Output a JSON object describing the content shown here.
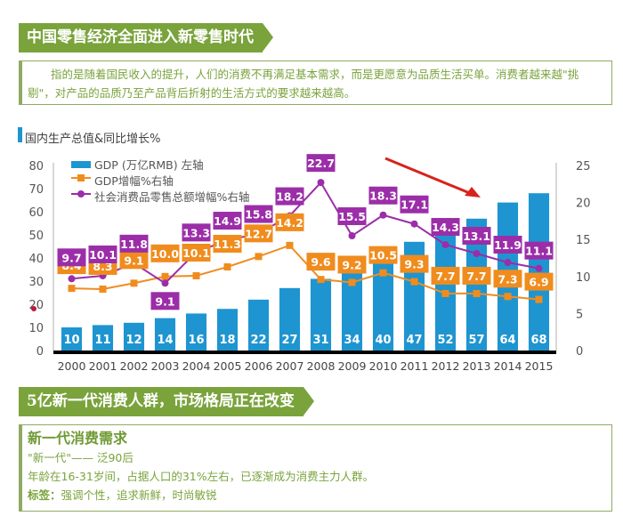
{
  "section1": {
    "banner_title": "中国零售经济全面进入新零售时代",
    "intro_text": "指的是随着国民收入的提升，人们的消费不再满足基本需求，而是更愿意为品质生活买单。消费者越来越\"挑剔\"，对产品的品质乃至产品背后折射的生活方式的要求越来越高。"
  },
  "chart_heading": "国内生产总值&同比增长%",
  "chart_data": {
    "type": "bar+line",
    "title": "国内生产总值&同比增长%",
    "categories": [
      "2000",
      "2001",
      "2002",
      "2003",
      "2004",
      "2005",
      "2006",
      "2007",
      "2008",
      "2009",
      "2010",
      "2011",
      "2012",
      "2013",
      "2014",
      "2015"
    ],
    "series": [
      {
        "name": "GDP (万亿RMB) 左轴",
        "type": "bar",
        "axis": "left",
        "color": "#1e95d0",
        "values": [
          10,
          11,
          12,
          14,
          16,
          18,
          22,
          27,
          31,
          34,
          40,
          47,
          52,
          57,
          64,
          68
        ]
      },
      {
        "name": "GDP增幅%右轴",
        "type": "line",
        "axis": "right",
        "color": "#f08c1e",
        "values": [
          8.4,
          8.3,
          9.1,
          10.0,
          10.1,
          11.3,
          12.7,
          14.2,
          9.6,
          9.2,
          10.5,
          9.3,
          7.7,
          7.7,
          7.3,
          6.9
        ]
      },
      {
        "name": "社会消费品零售总额增幅%右轴",
        "type": "line",
        "axis": "right",
        "color": "#9b2ea8",
        "values": [
          9.7,
          10.1,
          11.8,
          9.1,
          13.3,
          14.9,
          15.8,
          18.2,
          22.7,
          15.5,
          18.3,
          17.1,
          14.3,
          13.1,
          11.9,
          11.1
        ]
      }
    ],
    "left_axis": {
      "ylim": [
        0,
        80
      ],
      "ticks": [
        0,
        10,
        20,
        30,
        40,
        50,
        60,
        70,
        80
      ]
    },
    "right_axis": {
      "ylim": [
        0,
        25
      ],
      "ticks": [
        0,
        5,
        10,
        15,
        20,
        25
      ]
    },
    "legend_position": "top-left",
    "annotation": "red arrow pointing down-right (declining trend)",
    "grid": false
  },
  "section2": {
    "banner_title": "5亿新一代消费人群，市场格局正在改变",
    "box_title": "新一代消费需求",
    "line1": "\"新一代\"—— 泛90后",
    "line2": "年龄在16-31岁间，占据人口的31%左右，已逐渐成为消费主力人群。",
    "tag_label": "标签：",
    "tag_text": "强调个性，追求新鲜，时尚敏锐"
  }
}
